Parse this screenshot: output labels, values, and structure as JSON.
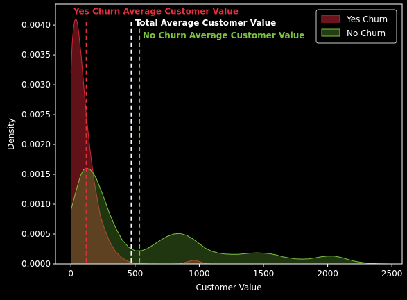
{
  "chart_data": {
    "type": "area",
    "title": "",
    "xlabel": "Customer Value",
    "ylabel": "Density",
    "xlim": [
      -120,
      2580
    ],
    "ylim": [
      0,
      0.00435
    ],
    "xticks": [
      0,
      500,
      1000,
      1500,
      2000,
      2500
    ],
    "xtick_labels": [
      "0",
      "500",
      "1000",
      "1500",
      "2000",
      "2500"
    ],
    "yticks": [
      0,
      0.0005,
      0.001,
      0.0015,
      0.002,
      0.0025,
      0.003,
      0.0035,
      0.004
    ],
    "ytick_labels": [
      "0.0000",
      "0.0005",
      "0.0010",
      "0.0015",
      "0.0020",
      "0.0025",
      "0.0030",
      "0.0035",
      "0.0040"
    ],
    "grid": false,
    "legend_position": "top-right",
    "series": [
      {
        "name": "Yes Churn",
        "line_color": "#d62838",
        "fill_color": "#d62838",
        "x": [
          0,
          10,
          20,
          30,
          40,
          50,
          60,
          80,
          100,
          120,
          150,
          180,
          200,
          230,
          260,
          300,
          350,
          400,
          450,
          500,
          600,
          700,
          800,
          850,
          880,
          920,
          960,
          990,
          1020,
          1060,
          1100
        ],
        "y": [
          0.0032,
          0.0037,
          0.00395,
          0.00408,
          0.0041,
          0.00405,
          0.0039,
          0.0035,
          0.003,
          0.0025,
          0.0019,
          0.0014,
          0.00115,
          0.0008,
          0.0006,
          0.00038,
          0.0002,
          0.0001,
          4e-05,
          1e-05,
          2e-06,
          2e-07,
          3e-07,
          5e-06,
          2e-05,
          4.5e-05,
          6e-05,
          5e-05,
          2.5e-05,
          5e-06,
          0
        ]
      },
      {
        "name": "No Churn",
        "line_color": "#7cc341",
        "fill_color": "#5a9a2e",
        "x": [
          0,
          25,
          50,
          75,
          100,
          125,
          150,
          175,
          200,
          250,
          300,
          350,
          400,
          450,
          500,
          550,
          600,
          650,
          700,
          750,
          800,
          850,
          900,
          950,
          1000,
          1050,
          1100,
          1150,
          1200,
          1250,
          1300,
          1350,
          1400,
          1450,
          1500,
          1550,
          1600,
          1650,
          1700,
          1750,
          1800,
          1850,
          1900,
          1950,
          2000,
          2050,
          2100,
          2150,
          2200,
          2250,
          2300,
          2350,
          2400,
          2450,
          2500
        ],
        "y": [
          0.0009,
          0.0011,
          0.0013,
          0.00148,
          0.00158,
          0.0016,
          0.00158,
          0.00152,
          0.00142,
          0.00115,
          0.00085,
          0.0006,
          0.0004,
          0.00028,
          0.00022,
          0.00022,
          0.00026,
          0.00033,
          0.0004,
          0.00046,
          0.0005,
          0.00051,
          0.00048,
          0.00042,
          0.00034,
          0.00026,
          0.00021,
          0.00018,
          0.000165,
          0.00016,
          0.00016,
          0.00017,
          0.00018,
          0.000185,
          0.00018,
          0.00017,
          0.00015,
          0.00012,
          0.0001,
          8.5e-05,
          8e-05,
          8.5e-05,
          0.0001,
          0.00012,
          0.00013,
          0.00013,
          0.00011,
          8e-05,
          5e-05,
          3e-05,
          1.5e-05,
          7e-06,
          3e-06,
          1e-06,
          0
        ]
      }
    ],
    "vlines": [
      {
        "x": 120,
        "color": "#e0303c",
        "style": "dashed"
      },
      {
        "x": 470,
        "color": "#ffffff",
        "style": "dashed"
      },
      {
        "x": 535,
        "color": "#7cc341",
        "style": "dashed"
      }
    ],
    "annotations": [
      {
        "text": "Yes Churn Average Customer Value",
        "x": 20,
        "y": 0.00418,
        "color": "#e0303c"
      },
      {
        "text": "Total Average Customer Value",
        "x": 500,
        "y": 0.00399,
        "color": "#ffffff"
      },
      {
        "text": "No Churn Average Customer Value",
        "x": 560,
        "y": 0.00378,
        "color": "#7cc341"
      }
    ]
  }
}
